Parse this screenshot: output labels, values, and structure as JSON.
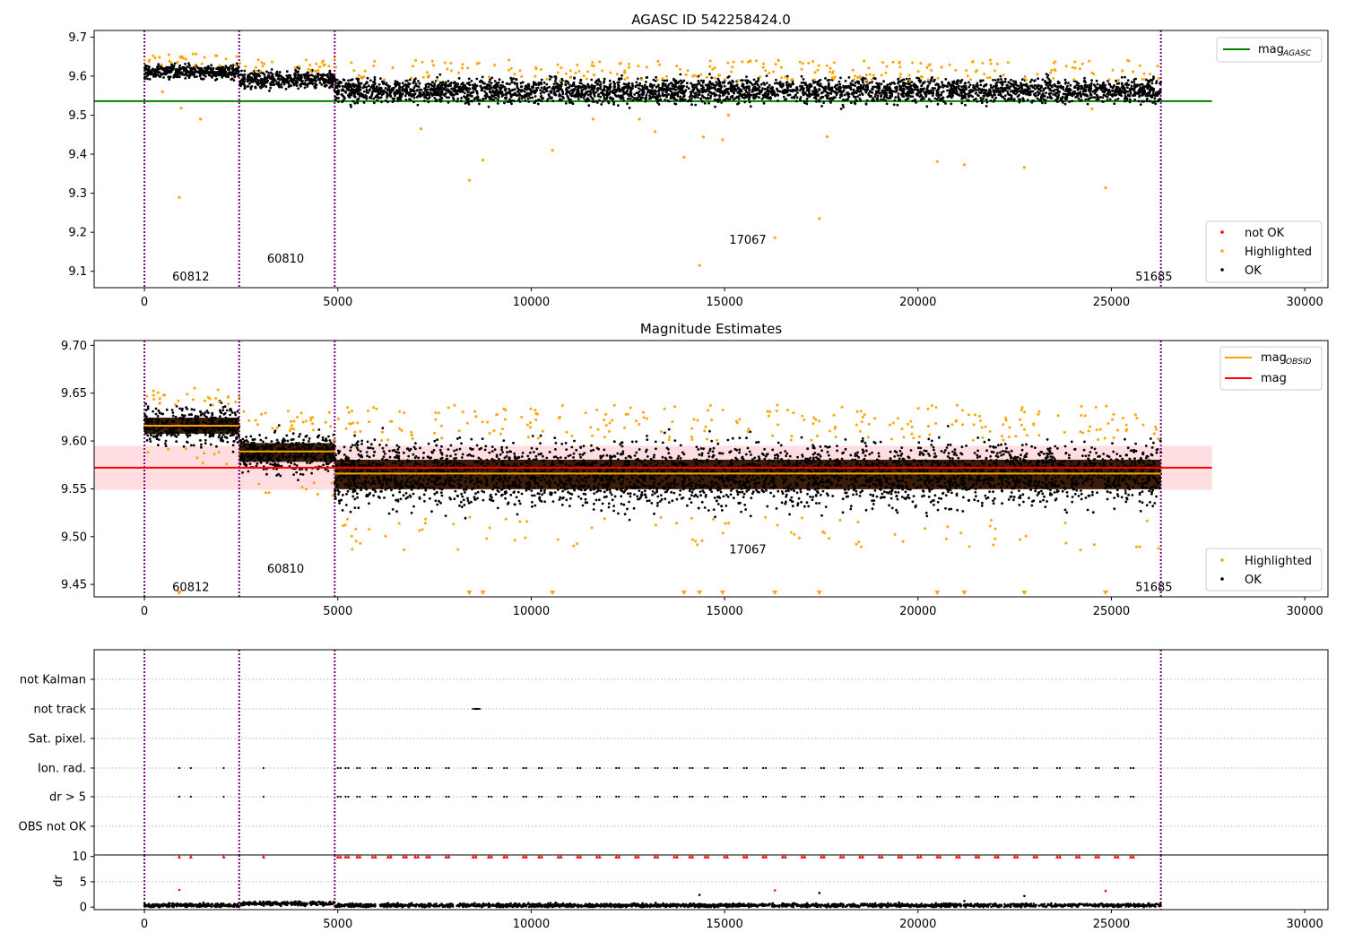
{
  "chart_data": [
    {
      "type": "scatter",
      "title": "AGASC ID 542258424.0",
      "xlabel": "",
      "ylabel": "",
      "xlim": [
        -1300,
        30600
      ],
      "ylim": [
        9.058,
        9.717
      ],
      "xticks": [
        0,
        5000,
        10000,
        15000,
        20000,
        25000,
        30000
      ],
      "yticks": [
        9.1,
        9.2,
        9.3,
        9.4,
        9.5,
        9.6,
        9.7
      ],
      "obsid_boundaries": [
        0,
        2450,
        4920,
        26280
      ],
      "obsid_labels": [
        {
          "x": 1200,
          "y": 9.085,
          "text": "60812"
        },
        {
          "x": 3650,
          "y": 9.132,
          "text": "60810"
        },
        {
          "x": 15600,
          "y": 9.18,
          "text": "17067"
        },
        {
          "x": 26100,
          "y": 9.085,
          "text": "51685"
        }
      ],
      "reference_lines": [
        {
          "name": "mag_AGASC",
          "y": 9.536,
          "x_range": [
            -1300,
            27600
          ],
          "color": "#008000"
        }
      ],
      "segments_ok": [
        {
          "x_start": 0,
          "x_end": 2450,
          "mean": 9.612,
          "spread": 0.016
        },
        {
          "x_start": 2450,
          "x_end": 4920,
          "mean": 9.59,
          "spread": 0.02
        },
        {
          "x_start": 4920,
          "x_end": 26280,
          "mean": 9.563,
          "spread": 0.028
        }
      ],
      "highlighted_outliers": [
        {
          "x": 900,
          "y": 9.289
        },
        {
          "x": 950,
          "y": 9.518
        },
        {
          "x": 1450,
          "y": 9.49
        },
        {
          "x": 470,
          "y": 9.56
        },
        {
          "x": 7150,
          "y": 9.465
        },
        {
          "x": 8400,
          "y": 9.333
        },
        {
          "x": 8750,
          "y": 9.385
        },
        {
          "x": 10550,
          "y": 9.41
        },
        {
          "x": 11600,
          "y": 9.49
        },
        {
          "x": 12800,
          "y": 9.49
        },
        {
          "x": 13200,
          "y": 9.458
        },
        {
          "x": 13950,
          "y": 9.392
        },
        {
          "x": 14350,
          "y": 9.115
        },
        {
          "x": 14450,
          "y": 9.444
        },
        {
          "x": 14950,
          "y": 9.437
        },
        {
          "x": 15100,
          "y": 9.5
        },
        {
          "x": 16300,
          "y": 9.186
        },
        {
          "x": 17450,
          "y": 9.235
        },
        {
          "x": 17650,
          "y": 9.445
        },
        {
          "x": 20500,
          "y": 9.381
        },
        {
          "x": 21200,
          "y": 9.373
        },
        {
          "x": 22750,
          "y": 9.366
        },
        {
          "x": 24850,
          "y": 9.314
        },
        {
          "x": 24500,
          "y": 9.516
        }
      ],
      "legends": [
        {
          "position": "top-right",
          "entries": [
            {
              "label": "mag",
              "sub": "AGASC",
              "color": "#008000",
              "marker": "line"
            }
          ]
        },
        {
          "position": "bottom-right",
          "entries": [
            {
              "label": "not OK",
              "color": "#ff0000",
              "marker": "dot"
            },
            {
              "label": "Highlighted",
              "color": "#ffa500",
              "marker": "dot"
            },
            {
              "label": "OK",
              "color": "#000000",
              "marker": "dot"
            }
          ]
        }
      ]
    },
    {
      "type": "scatter",
      "title": "Magnitude Estimates",
      "xlabel": "",
      "ylabel": "",
      "xlim": [
        -1300,
        30600
      ],
      "ylim": [
        9.437,
        9.705
      ],
      "xticks": [
        0,
        5000,
        10000,
        15000,
        20000,
        25000,
        30000
      ],
      "yticks": [
        9.45,
        9.5,
        9.55,
        9.6,
        9.65,
        9.7
      ],
      "obsid_boundaries": [
        0,
        2450,
        4920,
        26280
      ],
      "obsid_labels": [
        {
          "x": 1200,
          "y": 9.447,
          "text": "60812"
        },
        {
          "x": 3650,
          "y": 9.466,
          "text": "60810"
        },
        {
          "x": 15600,
          "y": 9.486,
          "text": "17067"
        },
        {
          "x": 26100,
          "y": 9.447,
          "text": "51685"
        }
      ],
      "reference_lines": [
        {
          "name": "mag",
          "y": 9.572,
          "x_range": [
            -1300,
            27600
          ],
          "color": "#ff0000",
          "band": [
            9.549,
            9.595
          ]
        }
      ],
      "obsid_mags": [
        {
          "x_start": 0,
          "x_end": 2450,
          "y": 9.616
        },
        {
          "x_start": 2450,
          "x_end": 4920,
          "y": 9.589
        },
        {
          "x_start": 4920,
          "x_end": 26280,
          "y": 9.566
        }
      ],
      "segments_ok": [
        {
          "x_start": 0,
          "x_end": 2450,
          "mean": 9.616,
          "spread": 0.012
        },
        {
          "x_start": 2450,
          "x_end": 4920,
          "mean": 9.588,
          "spread": 0.014
        },
        {
          "x_start": 4920,
          "x_end": 26280,
          "mean": 9.565,
          "spread": 0.022
        }
      ],
      "offscale_markers_x": [
        900,
        8400,
        8750,
        10550,
        13950,
        14350,
        14950,
        16300,
        17450,
        20500,
        21200,
        22750,
        24850
      ],
      "legends": [
        {
          "position": "top-right",
          "entries": [
            {
              "label": "mag",
              "sub": "OBSID",
              "color": "#ffa500",
              "marker": "line"
            },
            {
              "label": "mag",
              "sub": "",
              "color": "#ff0000",
              "marker": "line"
            }
          ]
        },
        {
          "position": "bottom-right",
          "entries": [
            {
              "label": "Highlighted",
              "color": "#ffa500",
              "marker": "dot"
            },
            {
              "label": "OK",
              "color": "#000000",
              "marker": "dot"
            }
          ]
        }
      ]
    },
    {
      "type": "scatter",
      "title": "",
      "xlabel": "",
      "ylabel": "",
      "xlim": [
        -1300,
        30600
      ],
      "flag_rows": [
        "not Kalman",
        "not track",
        "Sat. pixel.",
        "Ion. rad.",
        "dr > 5",
        "OBS not OK"
      ],
      "obsid_boundaries": [
        0,
        2450,
        4920,
        26280
      ],
      "flag_events": {
        "not track": [
          8500,
          8550,
          8600
        ],
        "Ion. rad.": [
          900,
          1200,
          2050,
          3080,
          5000,
          5200,
          5500,
          5900,
          6300,
          6700,
          7000,
          7300,
          7800,
          8500,
          8900,
          9300,
          9800,
          10200,
          10700,
          11200,
          11700,
          12200,
          12700,
          13200,
          13700,
          14100,
          14500,
          15000,
          15500,
          16000,
          16500,
          17000,
          17500,
          18000,
          18500,
          19000,
          19500,
          20000,
          20500,
          21000,
          21500,
          22000,
          22500,
          23000,
          23600,
          24100,
          24600,
          25100,
          25500
        ],
        "dr > 5": [
          900,
          1200,
          2050,
          3080,
          5000,
          5200,
          5500,
          5900,
          6300,
          6700,
          7000,
          7300,
          7800,
          8500,
          8900,
          9300,
          9800,
          10200,
          10700,
          11200,
          11700,
          12200,
          12700,
          13200,
          13700,
          14100,
          14500,
          15000,
          15500,
          16000,
          16500,
          17000,
          17500,
          18000,
          18500,
          19000,
          19500,
          20000,
          20500,
          21000,
          21500,
          22000,
          22500,
          23000,
          23600,
          24100,
          24600,
          25100,
          25500
        ]
      }
    },
    {
      "type": "scatter",
      "title": "",
      "xlabel": "",
      "ylabel": "dr",
      "xlim": [
        -1300,
        30600
      ],
      "ylim": [
        -0.5,
        10.3
      ],
      "xticks": [
        0,
        5000,
        10000,
        15000,
        20000,
        25000,
        30000
      ],
      "yticks": [
        0,
        5,
        10
      ],
      "obsid_boundaries": [
        0,
        2450,
        4920,
        26280
      ],
      "clipped_at": 10,
      "outliers": [
        {
          "x": 900,
          "y": 3.4
        },
        {
          "x": 14350,
          "y": 2.4
        },
        {
          "x": 16300,
          "y": 3.3
        },
        {
          "x": 17450,
          "y": 2.8
        },
        {
          "x": 21200,
          "y": 1.2
        },
        {
          "x": 22750,
          "y": 2.2
        },
        {
          "x": 24850,
          "y": 3.2
        }
      ]
    }
  ]
}
